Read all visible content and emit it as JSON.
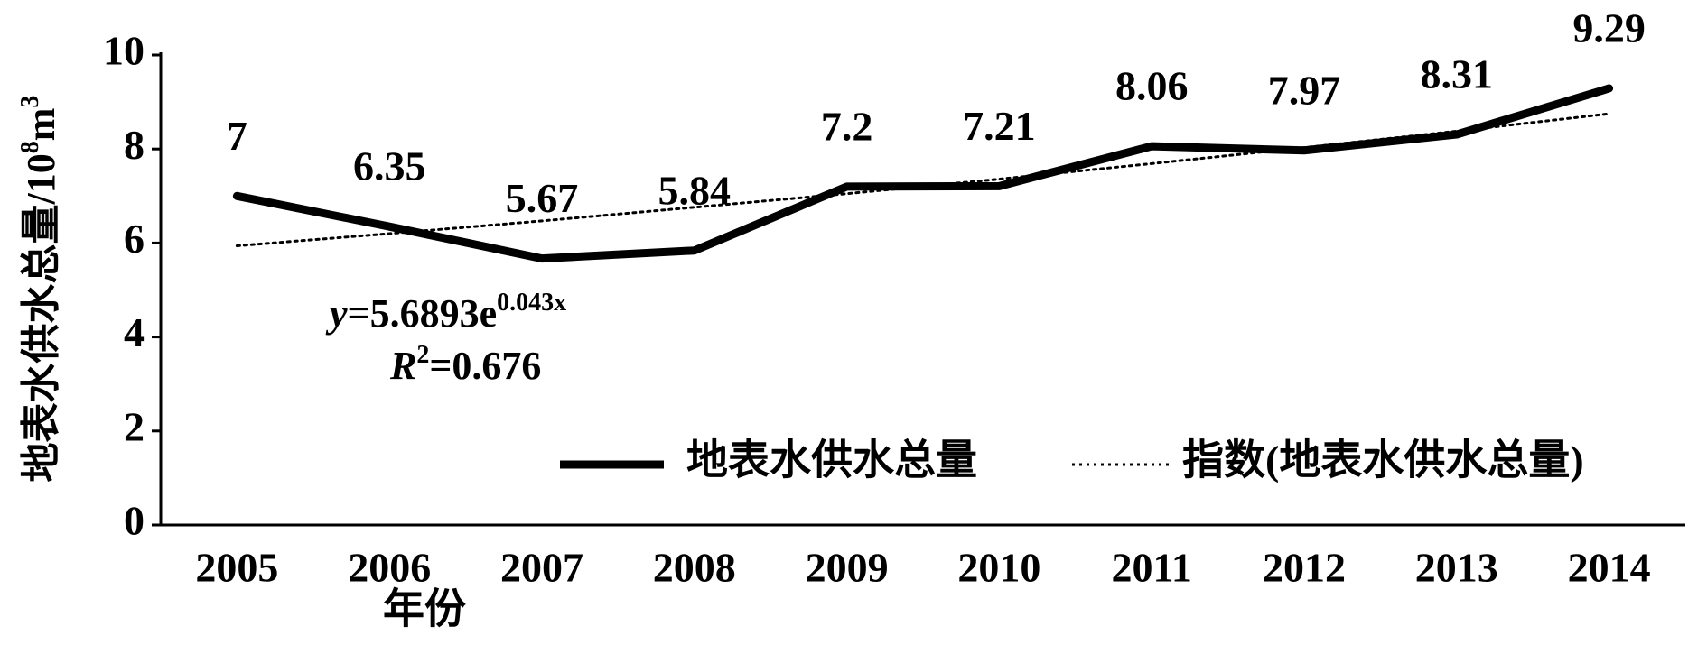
{
  "chart_data": {
    "type": "line",
    "categories": [
      "2005",
      "2006",
      "2007",
      "2008",
      "2009",
      "2010",
      "2011",
      "2012",
      "2013",
      "2014"
    ],
    "series": [
      {
        "name": "地表水供水总量",
        "color": "#000000",
        "style": "solid",
        "values": [
          7,
          6.35,
          5.67,
          5.84,
          7.2,
          7.21,
          8.06,
          7.97,
          8.31,
          9.29
        ]
      },
      {
        "name": "指数(地表水供水总量)",
        "color": "#000000",
        "style": "dotted",
        "values": [
          5.94,
          6.2,
          6.47,
          6.76,
          7.05,
          7.36,
          7.69,
          8.03,
          8.38,
          8.75
        ]
      }
    ],
    "data_labels_series": 0,
    "ylim": [
      0,
      10
    ],
    "yticks": [
      0,
      2,
      4,
      6,
      8,
      10
    ],
    "x_label": "年份",
    "y_label": [
      "地表水供水总量/10",
      "8",
      "m",
      "3"
    ],
    "trend_equation": [
      "y",
      "=5.6893e",
      "0.043x"
    ],
    "trend_r2": [
      "R",
      "2",
      "=0.676"
    ],
    "grid": false
  }
}
